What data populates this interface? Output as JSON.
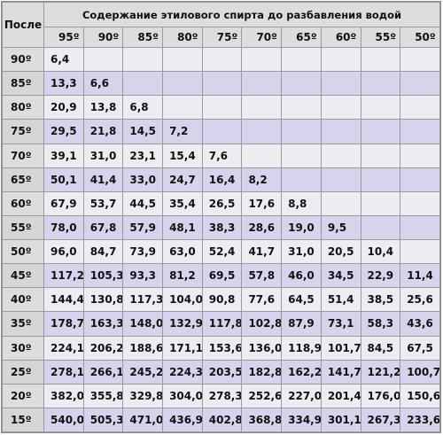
{
  "table": {
    "corner_label": "После",
    "title": "Содержание этилового спирта до разбавления водой",
    "columns": [
      "95º",
      "90º",
      "85º",
      "80º",
      "75º",
      "70º",
      "65º",
      "60º",
      "55º",
      "50º"
    ],
    "rows": [
      {
        "label": "90º",
        "values": [
          "6,4",
          "",
          "",
          "",
          "",
          "",
          "",
          "",
          "",
          ""
        ]
      },
      {
        "label": "85º",
        "values": [
          "13,3",
          "6,6",
          "",
          "",
          "",
          "",
          "",
          "",
          "",
          ""
        ]
      },
      {
        "label": "80º",
        "values": [
          "20,9",
          "13,8",
          "6,8",
          "",
          "",
          "",
          "",
          "",
          "",
          ""
        ]
      },
      {
        "label": "75º",
        "values": [
          "29,5",
          "21,8",
          "14,5",
          "7,2",
          "",
          "",
          "",
          "",
          "",
          ""
        ]
      },
      {
        "label": "70º",
        "values": [
          "39,1",
          "31,0",
          "23,1",
          "15,4",
          "7,6",
          "",
          "",
          "",
          "",
          ""
        ]
      },
      {
        "label": "65º",
        "values": [
          "50,1",
          "41,4",
          "33,0",
          "24,7",
          "16,4",
          "8,2",
          "",
          "",
          "",
          ""
        ]
      },
      {
        "label": "60º",
        "values": [
          "67,9",
          "53,7",
          "44,5",
          "35,4",
          "26,5",
          "17,6",
          "8,8",
          "",
          "",
          ""
        ]
      },
      {
        "label": "55º",
        "values": [
          "78,0",
          "67,8",
          "57,9",
          "48,1",
          "38,3",
          "28,6",
          "19,0",
          "9,5",
          "",
          ""
        ]
      },
      {
        "label": "50º",
        "values": [
          "96,0",
          "84,7",
          "73,9",
          "63,0",
          "52,4",
          "41,7",
          "31,0",
          "20,5",
          "10,4",
          ""
        ]
      },
      {
        "label": "45º",
        "values": [
          "117,2",
          "105,3",
          "93,3",
          "81,2",
          "69,5",
          "57,8",
          "46,0",
          "34,5",
          "22,9",
          "11,4"
        ]
      },
      {
        "label": "40º",
        "values": [
          "144,4",
          "130,8",
          "117,3",
          "104,0",
          "90,8",
          "77,6",
          "64,5",
          "51,4",
          "38,5",
          "25,6"
        ]
      },
      {
        "label": "35º",
        "values": [
          "178,7",
          "163,3",
          "148,0",
          "132,9",
          "117,8",
          "102,8",
          "87,9",
          "73,1",
          "58,3",
          "43,6"
        ]
      },
      {
        "label": "30º",
        "values": [
          "224,1",
          "206,2",
          "188,6",
          "171,1",
          "153,6",
          "136,0",
          "118,9",
          "101,7",
          "84,5",
          "67,5"
        ]
      },
      {
        "label": "25º",
        "values": [
          "278,1",
          "266,1",
          "245,2",
          "224,3",
          "203,5",
          "182,8",
          "162,2",
          "141,7",
          "121,2",
          "100,7"
        ]
      },
      {
        "label": "20º",
        "values": [
          "382,0",
          "355,8",
          "329,8",
          "304,0",
          "278,3",
          "252,6",
          "227,0",
          "201,4",
          "176,0",
          "150,6"
        ]
      },
      {
        "label": "15º",
        "values": [
          "540,0",
          "505,3",
          "471,0",
          "436,9",
          "402,8",
          "368,8",
          "334,9",
          "301,1",
          "267,3",
          "233,6"
        ]
      }
    ]
  }
}
